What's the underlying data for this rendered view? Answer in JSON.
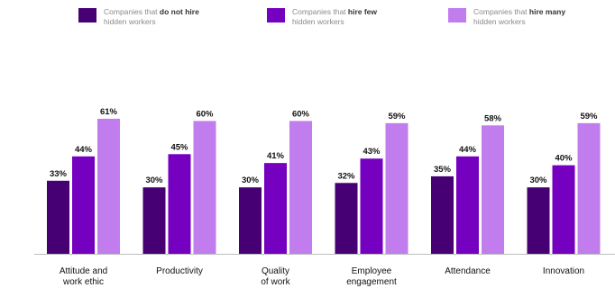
{
  "legend": [
    {
      "pre": "Companies that ",
      "bold": "do not hire",
      "post": "hidden workers",
      "color": "#460073"
    },
    {
      "pre": "Companies that ",
      "bold": "hire few",
      "post": "hidden workers",
      "color": "#7500c0"
    },
    {
      "pre": "Companies that ",
      "bold": "hire many",
      "post": "hidden workers",
      "color": "#c17dee"
    }
  ],
  "chart_data": {
    "type": "bar",
    "title": "",
    "xlabel": "",
    "ylabel": "",
    "ylim": [
      0,
      100
    ],
    "grid": false,
    "legend_position": "top",
    "categories": [
      [
        "Attitude and",
        "work ethic"
      ],
      [
        "Productivity"
      ],
      [
        "Quality",
        "of work"
      ],
      [
        "Employee",
        "engagement"
      ],
      [
        "Attendance"
      ],
      [
        "Innovation"
      ]
    ],
    "series": [
      {
        "name": "Companies that do not hire hidden workers",
        "color": "#460073",
        "values": [
          33,
          30,
          30,
          32,
          35,
          30
        ],
        "labels": [
          "33%",
          "30%",
          "30%",
          "32%",
          "35%",
          "30%"
        ]
      },
      {
        "name": "Companies that hire few hidden workers",
        "color": "#7500c0",
        "values": [
          44,
          45,
          41,
          43,
          44,
          40
        ],
        "labels": [
          "44%",
          "45%",
          "41%",
          "43%",
          "44%",
          "40%"
        ]
      },
      {
        "name": "Companies that hire many hidden workers",
        "color": "#c17dee",
        "values": [
          61,
          60,
          60,
          59,
          58,
          59
        ],
        "labels": [
          "61%",
          "60%",
          "60%",
          "59%",
          "58%",
          "59%"
        ]
      }
    ]
  }
}
